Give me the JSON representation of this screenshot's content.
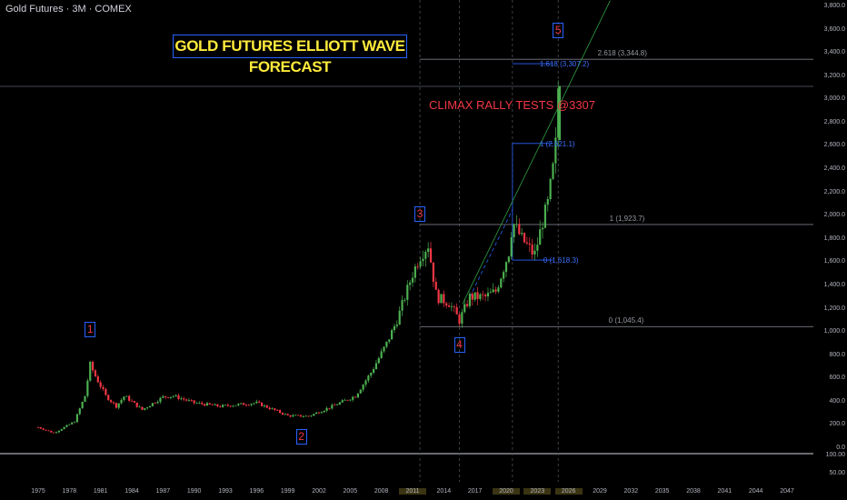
{
  "header": {
    "symbol_line": "Gold Futures · 3M · COMEX"
  },
  "annotations": {
    "title_box": "GOLD FUTURES ELLIOTT WAVE FORECAST",
    "callout": "CLIMAX RALLY TESTS @3307"
  },
  "wave_labels": [
    {
      "label": "1",
      "year": 1980.0,
      "price": 930
    },
    {
      "label": "2",
      "year": 2000.3,
      "price": 255
    },
    {
      "label": "3",
      "year": 2011.7,
      "price": 1920
    },
    {
      "label": "4",
      "year": 2015.5,
      "price": 1045
    },
    {
      "label": "5",
      "year": 2025.0,
      "price": 3500
    }
  ],
  "fib_levels": [
    {
      "label": "2.618 (3,344.8)",
      "price": 3344.8,
      "style": "grey",
      "x1": 2011.7,
      "x2": 2054
    },
    {
      "label": "1.618 (3,307.2)",
      "price": 3307.2,
      "style": "blue",
      "x1": 2020.6,
      "x2": 2024.5
    },
    {
      "label": "1 (2,621.1)",
      "price": 2621.1,
      "style": "blue",
      "x1": 2020.6,
      "x2": 2024.5
    },
    {
      "label": "1 (1,923.7)",
      "price": 1923.7,
      "style": "grey",
      "x1": 2011.7,
      "x2": 2054
    },
    {
      "label": "0 (1,618.3)",
      "price": 1618.3,
      "style": "blue",
      "x1": 2020.6,
      "x2": 2024.5
    },
    {
      "label": "0 (1,045.4)",
      "price": 1045.4,
      "style": "grey",
      "x1": 2011.7,
      "x2": 2054
    }
  ],
  "chart_data": {
    "type": "candlestick",
    "title": "",
    "timeframe": "3M",
    "x_range": [
      1974,
      2049
    ],
    "y_range": [
      -70,
      3850
    ],
    "y_ticks": [
      "3,800.0",
      "3,600.0",
      "3,400.0",
      "3,200.0",
      "3,000.0",
      "2,800.0",
      "2,600.0",
      "2,400.0",
      "2,200.0",
      "2,000.0",
      "1,800.0",
      "1,600.0",
      "1,400.0",
      "1,200.0",
      "1,000.0",
      "800.0",
      "600.0",
      "400.0",
      "200.0",
      "0.0"
    ],
    "y_ticks_lower": [
      "100.00",
      "50.00"
    ],
    "x_ticks": [
      "1975",
      "1978",
      "1981",
      "1984",
      "1987",
      "1990",
      "1993",
      "1996",
      "1999",
      "2002",
      "2005",
      "2008",
      "2011",
      "2014",
      "2017",
      "2020",
      "2023",
      "2026",
      "2029",
      "2032",
      "2035",
      "2038",
      "2041",
      "2044",
      "2047"
    ],
    "highlighted_x_ticks": [
      "2011",
      "2020",
      "2023",
      "2026"
    ],
    "price_path": [
      [
        1975.0,
        180
      ],
      [
        1976.5,
        130
      ],
      [
        1978.5,
        230
      ],
      [
        1979.5,
        450
      ],
      [
        1980.0,
        720
      ],
      [
        1980.5,
        620
      ],
      [
        1981.5,
        450
      ],
      [
        1982.5,
        360
      ],
      [
        1983.3,
        450
      ],
      [
        1985.0,
        330
      ],
      [
        1987.0,
        440
      ],
      [
        1988.0,
        450
      ],
      [
        1990.0,
        390
      ],
      [
        1992.5,
        360
      ],
      [
        1996.0,
        390
      ],
      [
        1999.0,
        280
      ],
      [
        2001.0,
        275
      ],
      [
        2003.0,
        350
      ],
      [
        2005.5,
        450
      ],
      [
        2007.0,
        650
      ],
      [
        2008.5,
        900
      ],
      [
        2009.5,
        1100
      ],
      [
        2011.0,
        1500
      ],
      [
        2011.7,
        1650
      ],
      [
        2012.5,
        1750
      ],
      [
        2013.3,
        1300
      ],
      [
        2014.5,
        1250
      ],
      [
        2015.5,
        1100
      ],
      [
        2016.5,
        1300
      ],
      [
        2018.0,
        1300
      ],
      [
        2019.0,
        1350
      ],
      [
        2020.3,
        1700
      ],
      [
        2020.6,
        1950
      ],
      [
        2021.5,
        1800
      ],
      [
        2022.4,
        1700
      ],
      [
        2022.7,
        1650
      ],
      [
        2023.5,
        1950
      ],
      [
        2024.0,
        2100
      ],
      [
        2024.5,
        2400
      ],
      [
        2024.8,
        2650
      ],
      [
        2025.0,
        3100
      ]
    ],
    "last_price": 3120,
    "trendline": {
      "from": [
        2015.8,
        1240
      ],
      "to": [
        2030,
        3850
      ]
    },
    "colors": {
      "up": "#4caf50",
      "down": "#f23645",
      "fib_blue": "#2962ff",
      "fib_grey": "#787b86",
      "grid": "#363a45",
      "background": "#000000"
    }
  }
}
